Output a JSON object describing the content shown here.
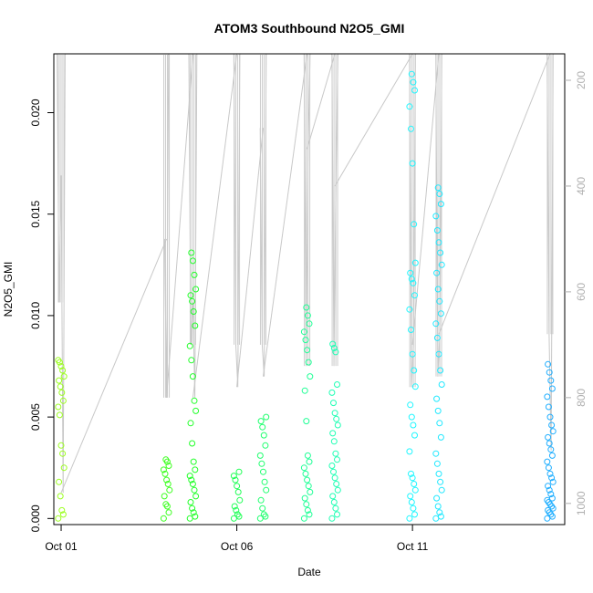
{
  "chart_data": {
    "type": "scatter",
    "title": "ATOM3 Southbound N2O5_GMI",
    "xlabel": "Date",
    "ylabel": "N2O5_GMI",
    "x_ticks": [
      {
        "date": "2017-10-01",
        "label": "Oct 01"
      },
      {
        "date": "2017-10-06",
        "label": "Oct 06"
      },
      {
        "date": "2017-10-11",
        "label": "Oct 11"
      }
    ],
    "xlim": [
      "2017-09-30T19:00",
      "2017-10-15T08:00"
    ],
    "ylim": [
      -0.0003,
      0.0229
    ],
    "y_ticks": [
      0.0,
      0.005,
      0.01,
      0.015,
      0.02
    ],
    "y_tick_labels": [
      "0.000",
      "0.005",
      "0.010",
      "0.015",
      "0.020"
    ],
    "right_axis": {
      "label": "",
      "inverted": true,
      "ticks": [
        200,
        400,
        600,
        800,
        1000
      ],
      "ylim": [
        1040,
        150
      ],
      "color": "#b0b0b0"
    },
    "point_style": "open-circle",
    "color_ramp": "hue by time (green to cyan to blue)",
    "series": [
      {
        "day": "2017-10-01T00:00",
        "color": "#9CFF1F",
        "values": [
          0.0,
          0.0002,
          0.0004,
          0.0011,
          0.0018,
          0.0025,
          0.0032,
          0.0036,
          0.0051,
          0.0055,
          0.0058,
          0.0062,
          0.0065,
          0.0068,
          0.007,
          0.0073,
          0.0075,
          0.0077,
          0.0078
        ],
        "pressure_trace": [
          150,
          620,
          380,
          980,
          150
        ]
      },
      {
        "day": "2017-10-04T00:00",
        "color": "#3CFF1F",
        "values": [
          0.0,
          0.0003,
          0.0006,
          0.0007,
          0.0011,
          0.0014,
          0.0017,
          0.0019,
          0.0022,
          0.0024,
          0.0026,
          0.0028,
          0.0029
        ],
        "pressure_trace": [
          500,
          800,
          150
        ]
      },
      {
        "day": "2017-10-04T18:00",
        "color": "#22FF2A",
        "values": [
          0.0,
          0.0001,
          0.0003,
          0.0005,
          0.0008,
          0.0011,
          0.0014,
          0.0017,
          0.0019,
          0.0021,
          0.0024,
          0.0028,
          0.0037,
          0.0047,
          0.0053,
          0.0058,
          0.007,
          0.0078,
          0.0085,
          0.0095,
          0.0102,
          0.0107,
          0.011,
          0.0113,
          0.012,
          0.0127,
          0.0131
        ],
        "pressure_trace": [
          150,
          700,
          620,
          800,
          150
        ]
      },
      {
        "day": "2017-10-06T00:00",
        "color": "#1FFF55",
        "values": [
          0.0,
          0.0001,
          0.0002,
          0.0004,
          0.0006,
          0.0009,
          0.0013,
          0.0016,
          0.0019,
          0.0021,
          0.0023
        ],
        "pressure_trace": [
          150,
          700,
          780,
          150
        ]
      },
      {
        "day": "2017-10-06T18:00",
        "color": "#1FFF6E",
        "values": [
          0.0,
          0.0001,
          0.0002,
          0.0005,
          0.0009,
          0.0014,
          0.0018,
          0.0023,
          0.0027,
          0.0031,
          0.0036,
          0.0041,
          0.0045,
          0.0048,
          0.005
        ],
        "pressure_trace": [
          290,
          700,
          760,
          150
        ]
      },
      {
        "day": "2017-10-08T00:00",
        "color": "#1FFF96",
        "values": [
          0.0,
          0.0002,
          0.0004,
          0.0007,
          0.001,
          0.0013,
          0.0016,
          0.0019,
          0.0022,
          0.0025,
          0.0028,
          0.0031,
          0.0048,
          0.0063,
          0.007,
          0.0077,
          0.0083,
          0.0088,
          0.0092,
          0.0096,
          0.01,
          0.0104
        ],
        "pressure_trace": [
          150,
          740,
          330,
          150
        ]
      },
      {
        "day": "2017-10-08T19:00",
        "color": "#1FFFB4",
        "values": [
          0.0,
          0.0002,
          0.0005,
          0.0008,
          0.0011,
          0.0014,
          0.0017,
          0.002,
          0.0023,
          0.0026,
          0.0029,
          0.0032,
          0.0038,
          0.0042,
          0.0046,
          0.0049,
          0.0052,
          0.0057,
          0.0062,
          0.0066,
          0.0082,
          0.0084,
          0.0086
        ],
        "pressure_trace": [
          150,
          740,
          400,
          150
        ]
      },
      {
        "day": "2017-10-11T00:00",
        "color": "#1FF6FF",
        "values": [
          0.0,
          0.0002,
          0.0005,
          0.0008,
          0.0011,
          0.0014,
          0.0017,
          0.002,
          0.0022,
          0.0033,
          0.0041,
          0.0046,
          0.005,
          0.0056,
          0.0065,
          0.0073,
          0.0081,
          0.0093,
          0.0103,
          0.011,
          0.0116,
          0.0118,
          0.0121,
          0.0126,
          0.0145,
          0.0175,
          0.0192,
          0.0203,
          0.0211,
          0.0215,
          0.0219
        ],
        "pressure_trace": [
          150,
          780,
          700,
          150
        ]
      },
      {
        "day": "2017-10-11T18:00",
        "color": "#1FE8FF",
        "values": [
          0.0,
          0.0001,
          0.0003,
          0.0006,
          0.001,
          0.0014,
          0.0018,
          0.0022,
          0.0027,
          0.0032,
          0.004,
          0.0047,
          0.0053,
          0.0059,
          0.0066,
          0.0073,
          0.0081,
          0.0089,
          0.0096,
          0.0101,
          0.0107,
          0.0113,
          0.0121,
          0.0125,
          0.0131,
          0.0136,
          0.0142,
          0.0149,
          0.0155,
          0.016,
          0.0163
        ],
        "pressure_trace": [
          150,
          760,
          680,
          150
        ]
      },
      {
        "day": "2017-10-14T22:00",
        "color": "#1FAEFF",
        "values": [
          0.0,
          0.0001,
          0.0002,
          0.0003,
          0.0004,
          0.0005,
          0.0006,
          0.0007,
          0.0008,
          0.0009,
          0.001,
          0.0012,
          0.0014,
          0.0016,
          0.0018,
          0.002,
          0.0022,
          0.0025,
          0.0028,
          0.0031,
          0.0034,
          0.0037,
          0.004,
          0.0043,
          0.0046,
          0.005,
          0.0055,
          0.006,
          0.0064,
          0.0068,
          0.0072,
          0.0076
        ],
        "pressure_trace": [
          150,
          680,
          900,
          150
        ]
      }
    ]
  }
}
